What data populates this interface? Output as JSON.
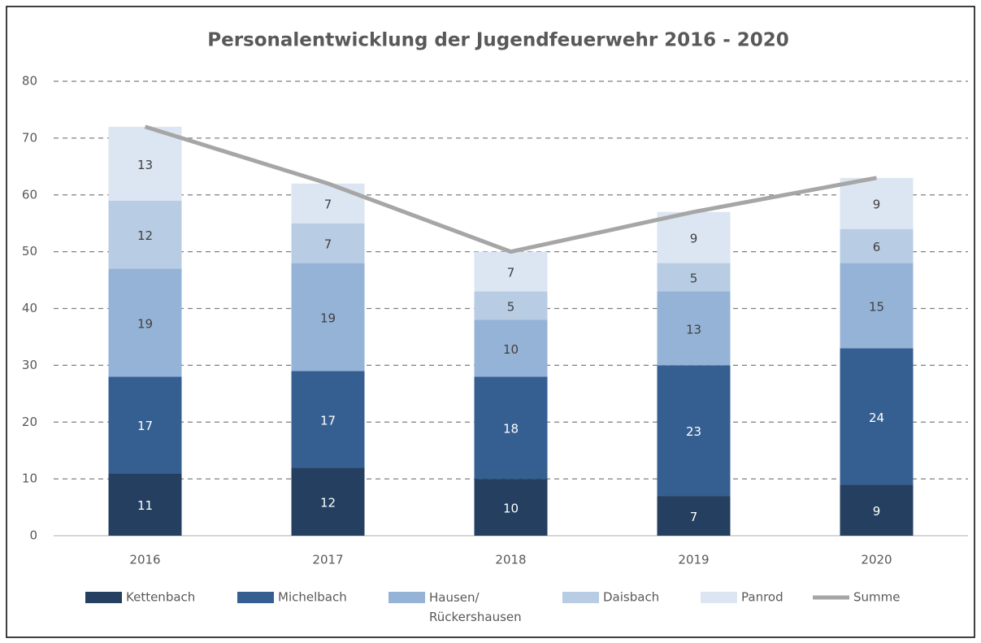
{
  "chart_data": {
    "type": "stacked-bar-line",
    "title": "Personalentwicklung der Jugendfeuerwehr 2016 - 2020",
    "categories": [
      "2016",
      "2017",
      "2018",
      "2019",
      "2020"
    ],
    "series": [
      {
        "name": "Kettenbach",
        "color": "#243f60",
        "values": [
          11,
          12,
          10,
          7,
          9
        ]
      },
      {
        "name": "Michelbach",
        "color": "#355f91",
        "values": [
          17,
          17,
          18,
          23,
          24
        ]
      },
      {
        "name": "Hausen/ Rückershausen",
        "color": "#95b3d7",
        "values": [
          19,
          19,
          10,
          13,
          15
        ]
      },
      {
        "name": "Daisbach",
        "color": "#b8cce4",
        "values": [
          12,
          7,
          5,
          5,
          6
        ]
      },
      {
        "name": "Panrod",
        "color": "#dce6f2",
        "values": [
          13,
          7,
          7,
          9,
          9
        ]
      },
      {
        "name": "Summe",
        "color": "#a6a6a6",
        "type": "line",
        "values": [
          72,
          62,
          50,
          57,
          63
        ]
      }
    ],
    "ylim": [
      0,
      80
    ],
    "yticks": [
      0,
      10,
      20,
      30,
      40,
      50,
      60,
      70,
      80
    ],
    "grid": true,
    "legend": "bottom"
  }
}
